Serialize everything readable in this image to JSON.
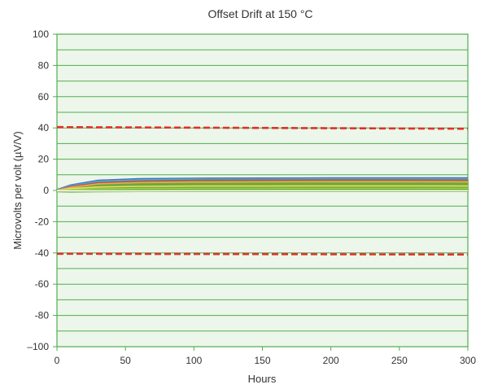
{
  "chart_data": {
    "type": "line",
    "title": "Offset Drift at 150 °C",
    "xlabel": "Hours",
    "ylabel": "Microvolts per volt (µV/V)",
    "xlim": [
      0,
      300
    ],
    "ylim": [
      -100,
      100
    ],
    "x_ticks": [
      0,
      50,
      100,
      150,
      200,
      250,
      300
    ],
    "y_ticks": [
      100,
      80,
      60,
      40,
      20,
      0,
      -20,
      -40,
      -60,
      -80,
      -100
    ],
    "x_tick_labels": [
      "0",
      "50",
      "100",
      "150",
      "200",
      "250",
      "300"
    ],
    "y_tick_labels": [
      "100",
      "80",
      "60",
      "40",
      "20",
      "0",
      "-20",
      "-40",
      "-60",
      "-80",
      "–100"
    ],
    "grid": true,
    "limit_lines": [
      {
        "name": "upper-limit",
        "x": [
          0,
          300
        ],
        "y": [
          40.5,
          39.5
        ],
        "color": "#e0312a",
        "style": "dashed"
      },
      {
        "name": "lower-limit",
        "x": [
          0,
          300
        ],
        "y": [
          -40.5,
          -41.0
        ],
        "color": "#e0312a",
        "style": "dashed"
      }
    ],
    "series": [
      {
        "name": "device-band-green",
        "color": "#6aaa3a",
        "x": [
          0,
          10,
          30,
          60,
          100,
          150,
          200,
          250,
          300
        ],
        "y_high": [
          0.5,
          3.0,
          5.5,
          6.5,
          7.0,
          7.0,
          7.2,
          7.2,
          7.0
        ],
        "y_low": [
          -0.8,
          -1.0,
          -0.8,
          -0.7,
          -0.6,
          -0.6,
          -0.6,
          -0.6,
          -0.6
        ]
      },
      {
        "name": "device-line-blue",
        "color": "#4472c4",
        "x": [
          0,
          10,
          30,
          60,
          100,
          150,
          200,
          250,
          300
        ],
        "y": [
          0.5,
          3.5,
          6.5,
          7.5,
          7.8,
          7.9,
          8.0,
          8.0,
          8.0
        ]
      },
      {
        "name": "device-line-teal",
        "color": "#4aaec6",
        "x": [
          0,
          10,
          30,
          60,
          100,
          150,
          200,
          250,
          300
        ],
        "y": [
          0.3,
          3.0,
          5.8,
          6.8,
          7.2,
          7.3,
          7.4,
          7.4,
          7.3
        ]
      },
      {
        "name": "device-line-red",
        "color": "#c0504d",
        "x": [
          0,
          10,
          30,
          60,
          100,
          150,
          200,
          250,
          300
        ],
        "y": [
          0.2,
          2.5,
          5.0,
          6.0,
          6.5,
          6.6,
          6.7,
          6.7,
          6.6
        ]
      },
      {
        "name": "device-line-orange",
        "color": "#e8a85a",
        "x": [
          0,
          10,
          30,
          60,
          100,
          150,
          200,
          250,
          300
        ],
        "y": [
          0.1,
          2.0,
          4.2,
          5.0,
          5.3,
          5.4,
          5.5,
          5.5,
          5.4
        ]
      },
      {
        "name": "device-line-yellow",
        "color": "#f2dc5d",
        "x": [
          0,
          10,
          30,
          60,
          100,
          150,
          200,
          250,
          300
        ],
        "y": [
          0.0,
          1.2,
          2.2,
          2.6,
          2.8,
          2.8,
          2.9,
          2.9,
          2.8
        ]
      },
      {
        "name": "device-line-lightgreen",
        "color": "#9bcf53",
        "x": [
          0,
          10,
          30,
          60,
          100,
          150,
          200,
          250,
          300
        ],
        "y": [
          0.0,
          0.5,
          1.0,
          1.2,
          1.3,
          1.3,
          1.3,
          1.3,
          1.3
        ]
      },
      {
        "name": "device-line-white",
        "color": "#ffffff",
        "x": [
          0,
          10,
          30,
          60,
          100,
          150,
          200,
          250,
          300
        ],
        "y": [
          -0.2,
          -0.3,
          -0.3,
          -0.3,
          -0.2,
          -0.2,
          -0.2,
          -0.2,
          -0.2
        ]
      }
    ]
  }
}
